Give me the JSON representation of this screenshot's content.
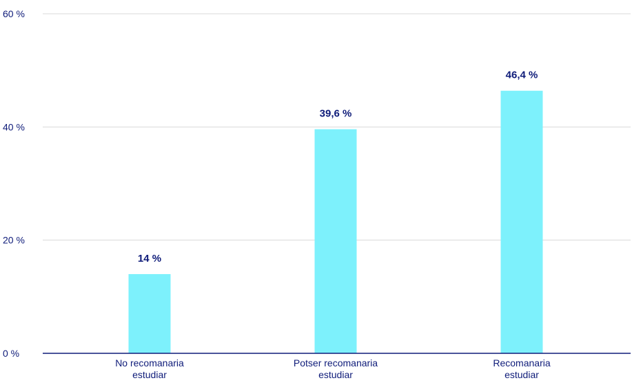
{
  "colors": {
    "bar": "#7df1fc",
    "axis_text": "#0e1b79",
    "data_label": "#0e1b79",
    "grid": "#d9d9d9",
    "baseline": "#0e1b79"
  },
  "chart_data": {
    "type": "bar",
    "title": "",
    "xlabel": "",
    "ylabel": "",
    "categories": [
      [
        "No recomanaria",
        "estudiar"
      ],
      [
        "Potser recomanaria",
        "estudiar"
      ],
      [
        "Recomanaria",
        "estudiar"
      ]
    ],
    "values": [
      14,
      39.6,
      46.4
    ],
    "value_labels": [
      "14 %",
      "39,6 %",
      "46,4 %"
    ],
    "ylim": [
      0,
      60
    ],
    "yticks": [
      0,
      20,
      40,
      60
    ],
    "ytick_labels": [
      "0 %",
      "20 %",
      "40 %",
      "60 %"
    ],
    "grid": true,
    "legend": "none"
  }
}
